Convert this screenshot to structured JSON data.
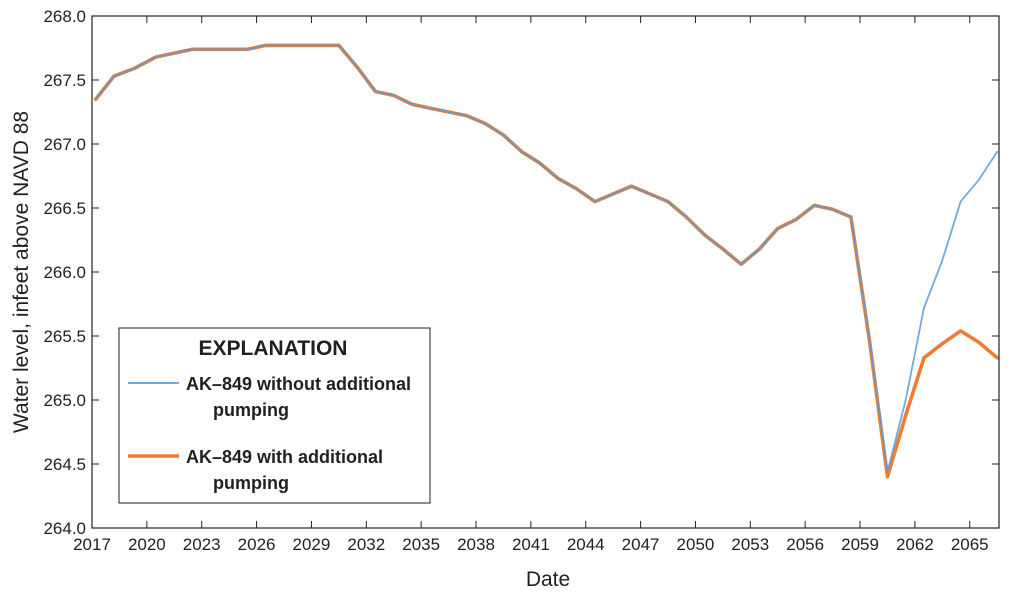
{
  "chart_data": {
    "type": "line",
    "xlabel": "Date",
    "ylabel": "Water level, infeet above NAVD 88",
    "xlim": [
      2017,
      2066.6
    ],
    "ylim": [
      264.0,
      268.0
    ],
    "x_ticks": [
      2017,
      2020,
      2023,
      2026,
      2029,
      2032,
      2035,
      2038,
      2041,
      2044,
      2047,
      2050,
      2053,
      2056,
      2059,
      2062,
      2065
    ],
    "x_tick_labels": [
      "2017",
      "2020",
      "2023",
      "2026",
      "2029",
      "2032",
      "2035",
      "2038",
      "2041",
      "2044",
      "2047",
      "2050",
      "2053",
      "2056",
      "2059",
      "2062",
      "2065"
    ],
    "y_ticks": [
      264.0,
      264.5,
      265.0,
      265.5,
      266.0,
      266.5,
      267.0,
      267.5,
      268.0
    ],
    "y_tick_labels": [
      "264.0",
      "264.5",
      "265.0",
      "265.5",
      "266.0",
      "266.5",
      "267.0",
      "267.5",
      "268.0"
    ],
    "grid": false,
    "legend": {
      "title": "EXPLANATION",
      "placement": "lower-left",
      "entries": [
        {
          "line1": "AK–849 without additional",
          "line2": "pumping"
        },
        {
          "line1": "AK–849 with additional",
          "line2": "pumping"
        }
      ]
    },
    "series": [
      {
        "name": "AK–849 without additional pumping",
        "color": "#5b9bd5",
        "width": "thin",
        "x": [
          2017.2,
          2018.2,
          2019.3,
          2020.5,
          2022.5,
          2025.5,
          2026.5,
          2030.5,
          2031.5,
          2032.5,
          2033.5,
          2034.5,
          2035.5,
          2036.5,
          2037.5,
          2038.5,
          2039.5,
          2040.5,
          2041.5,
          2042.5,
          2043.5,
          2044.5,
          2045.5,
          2046.5,
          2047.5,
          2048.5,
          2049.5,
          2050.5,
          2051.5,
          2052.5,
          2053.5,
          2054.5,
          2055.5,
          2056.5,
          2057.5,
          2058.5,
          2059.5,
          2060.5,
          2061.5,
          2062.5,
          2063.5,
          2064.5,
          2065.5,
          2066.5
        ],
        "y": [
          267.35,
          267.53,
          267.59,
          267.68,
          267.74,
          267.74,
          267.77,
          267.77,
          267.6,
          267.41,
          267.38,
          267.31,
          267.28,
          267.25,
          267.22,
          267.16,
          267.07,
          266.94,
          266.85,
          266.73,
          266.65,
          266.55,
          266.61,
          266.67,
          266.61,
          266.55,
          266.43,
          266.29,
          266.18,
          266.06,
          266.18,
          266.34,
          266.41,
          266.52,
          266.49,
          266.43,
          265.5,
          264.44,
          265.0,
          265.72,
          266.09,
          266.55,
          266.72,
          266.94
        ]
      },
      {
        "name": "AK–849 with additional pumping",
        "color": "#ed7d31",
        "width": "thick",
        "x": [
          2017.2,
          2018.2,
          2019.3,
          2020.5,
          2022.5,
          2025.5,
          2026.5,
          2030.5,
          2031.5,
          2032.5,
          2033.5,
          2034.5,
          2035.5,
          2036.5,
          2037.5,
          2038.5,
          2039.5,
          2040.5,
          2041.5,
          2042.5,
          2043.5,
          2044.5,
          2045.5,
          2046.5,
          2047.5,
          2048.5,
          2049.5,
          2050.5,
          2051.5,
          2052.5,
          2053.5,
          2054.5,
          2055.5,
          2056.5,
          2057.5,
          2058.5,
          2059.5,
          2060.5,
          2061.5,
          2062.5,
          2063.5,
          2064.5,
          2065.5,
          2066.5
        ],
        "y": [
          267.35,
          267.53,
          267.59,
          267.68,
          267.74,
          267.74,
          267.77,
          267.77,
          267.6,
          267.41,
          267.38,
          267.31,
          267.28,
          267.25,
          267.22,
          267.16,
          267.07,
          266.94,
          266.85,
          266.73,
          266.65,
          266.55,
          266.61,
          266.67,
          266.61,
          266.55,
          266.43,
          266.29,
          266.18,
          266.06,
          266.18,
          266.34,
          266.41,
          266.52,
          266.49,
          266.43,
          265.48,
          264.4,
          264.88,
          265.33,
          265.44,
          265.54,
          265.45,
          265.33
        ]
      }
    ]
  }
}
